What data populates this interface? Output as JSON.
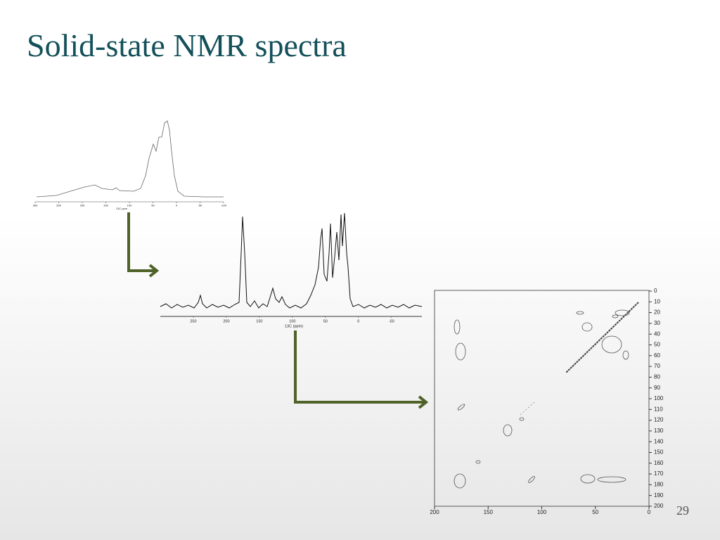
{
  "slide": {
    "title": "Solid-state NMR spectra",
    "page_number": "29"
  },
  "spectrum_1d": {
    "x_label": "13C ppm",
    "xlim": [
      300,
      -100
    ],
    "xticks": [
      300,
      250,
      200,
      150,
      100,
      50,
      0,
      -50,
      -100
    ]
  },
  "spectrum_cp": {
    "x_label": "13C (ppm)",
    "xlim": [
      300,
      -95
    ],
    "xticks": [
      250,
      200,
      150,
      100,
      50,
      0,
      -50
    ]
  },
  "spectrum_2d": {
    "xlim": [
      200,
      0
    ],
    "xticks": [
      200,
      150,
      100,
      50,
      0
    ],
    "ylim": [
      0,
      200
    ],
    "yticks": [
      0,
      10,
      20,
      30,
      40,
      50,
      60,
      70,
      80,
      90,
      100,
      110,
      120,
      130,
      140,
      150,
      160,
      170,
      180,
      190,
      200
    ]
  }
}
